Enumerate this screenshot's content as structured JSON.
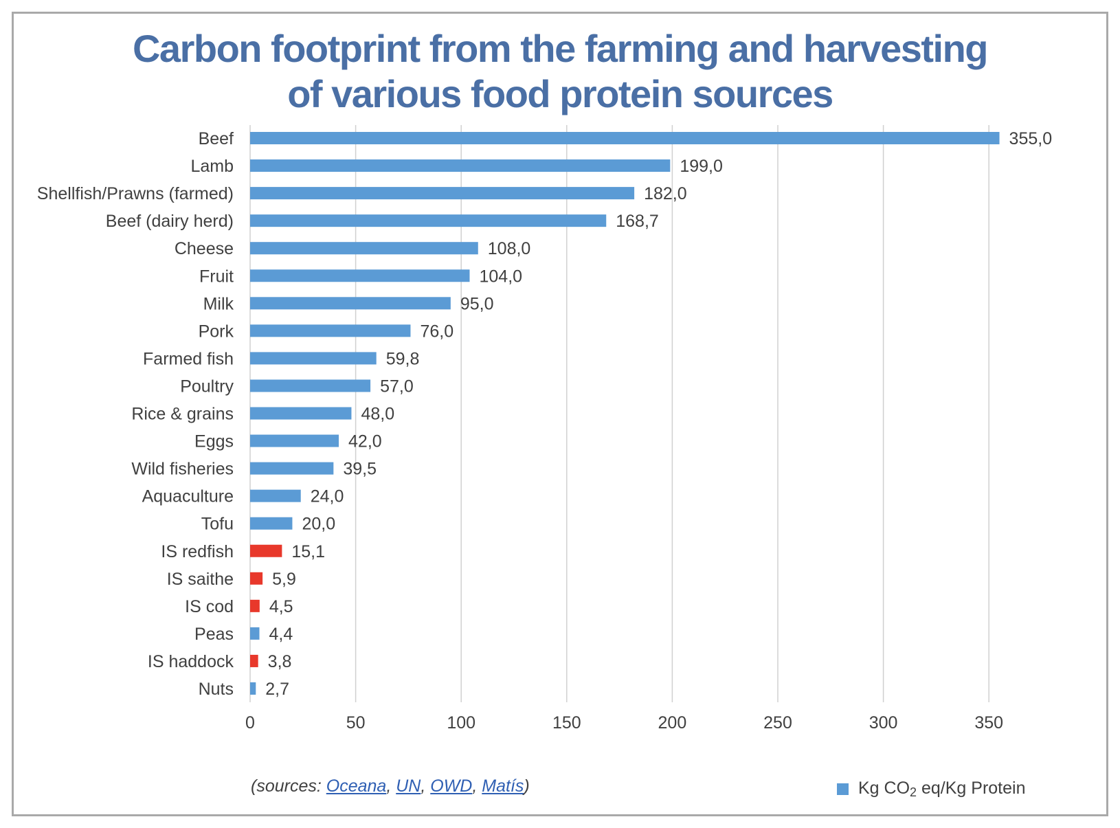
{
  "title_line1": "Carbon footprint from the farming and harvesting",
  "title_line2": "of various food protein sources",
  "sources": {
    "prefix": "(sources: ",
    "links": [
      "Oceana",
      "UN",
      "OWD",
      "Matís"
    ],
    "separator": ", ",
    "suffix": ")"
  },
  "legend": {
    "label_before": "Kg CO",
    "label_sub": "2",
    "label_after": " eq/Kg Protein"
  },
  "colors": {
    "default_bar": "#5b9bd5",
    "highlight_bar": "#e8382b",
    "title": "#4a6fa5",
    "gridline": "#d0d0d0"
  },
  "chart_data": {
    "type": "bar",
    "orientation": "horizontal",
    "categories": [
      "Beef",
      "Lamb",
      "Shellfish/Prawns (farmed)",
      "Beef (dairy herd)",
      "Cheese",
      "Fruit",
      "Milk",
      "Pork",
      "Farmed fish",
      "Poultry",
      "Rice & grains",
      "Eggs",
      "Wild fisheries",
      "Aquaculture",
      "Tofu",
      "IS redfish",
      "IS saithe",
      "IS cod",
      "Peas",
      "IS haddock",
      "Nuts"
    ],
    "values": [
      355.0,
      199.0,
      182.0,
      168.7,
      108.0,
      104.0,
      95.0,
      76.0,
      59.8,
      57.0,
      48.0,
      42.0,
      39.5,
      24.0,
      20.0,
      15.1,
      5.9,
      4.5,
      4.4,
      3.8,
      2.7
    ],
    "data_labels": [
      "355,0",
      "199,0",
      "182,0",
      "168,7",
      "108,0",
      "104,0",
      "95,0",
      "76,0",
      "59,8",
      "57,0",
      "48,0",
      "42,0",
      "39,5",
      "24,0",
      "20,0",
      "15,1",
      "5,9",
      "4,5",
      "4,4",
      "3,8",
      "2,7"
    ],
    "highlighted": [
      "IS redfish",
      "IS saithe",
      "IS cod",
      "IS haddock"
    ],
    "series": [
      {
        "name": "Kg CO2 eq/Kg Protein"
      }
    ],
    "xlim": [
      0,
      355
    ],
    "xticks": [
      0,
      50,
      100,
      150,
      200,
      250,
      300,
      350
    ],
    "grid": true,
    "legend_position": "bottom-right"
  }
}
